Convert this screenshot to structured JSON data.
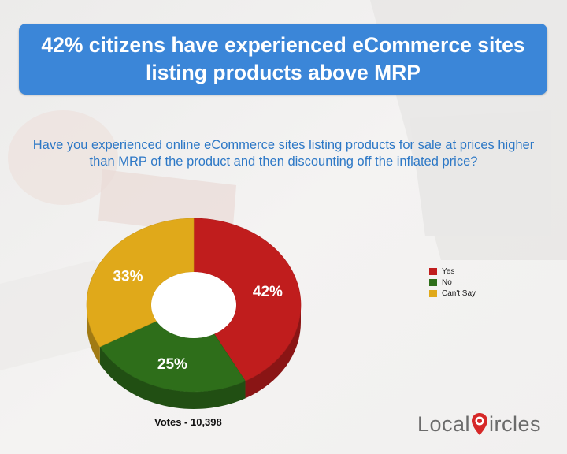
{
  "header": {
    "title": "42% citizens have experienced eCommerce sites listing products above MRP"
  },
  "question": "Have you experienced online eCommerce sites listing products for sale at prices higher than MRP of the product and then discounting off the inflated price?",
  "chart_data": {
    "type": "pie",
    "style": "3d-donut",
    "categories": [
      "Yes",
      "No",
      "Can't Say"
    ],
    "values": [
      42,
      25,
      33
    ],
    "labels": [
      "42%",
      "25%",
      "33%"
    ],
    "colors": [
      "#c01d1d",
      "#2e6e1a",
      "#e0a91a"
    ],
    "legend_position": "right",
    "footer": "Votes - 10,398"
  },
  "legend": {
    "items": [
      {
        "label": "Yes",
        "color": "#c01d1d"
      },
      {
        "label": "No",
        "color": "#2e6e1a"
      },
      {
        "label": "Can't Say",
        "color": "#e0a91a"
      }
    ]
  },
  "footer": {
    "votes": "Votes - 10,398"
  },
  "brand": {
    "logo_left": "Local",
    "logo_right": "ircles",
    "pin_color": "#d62828"
  }
}
